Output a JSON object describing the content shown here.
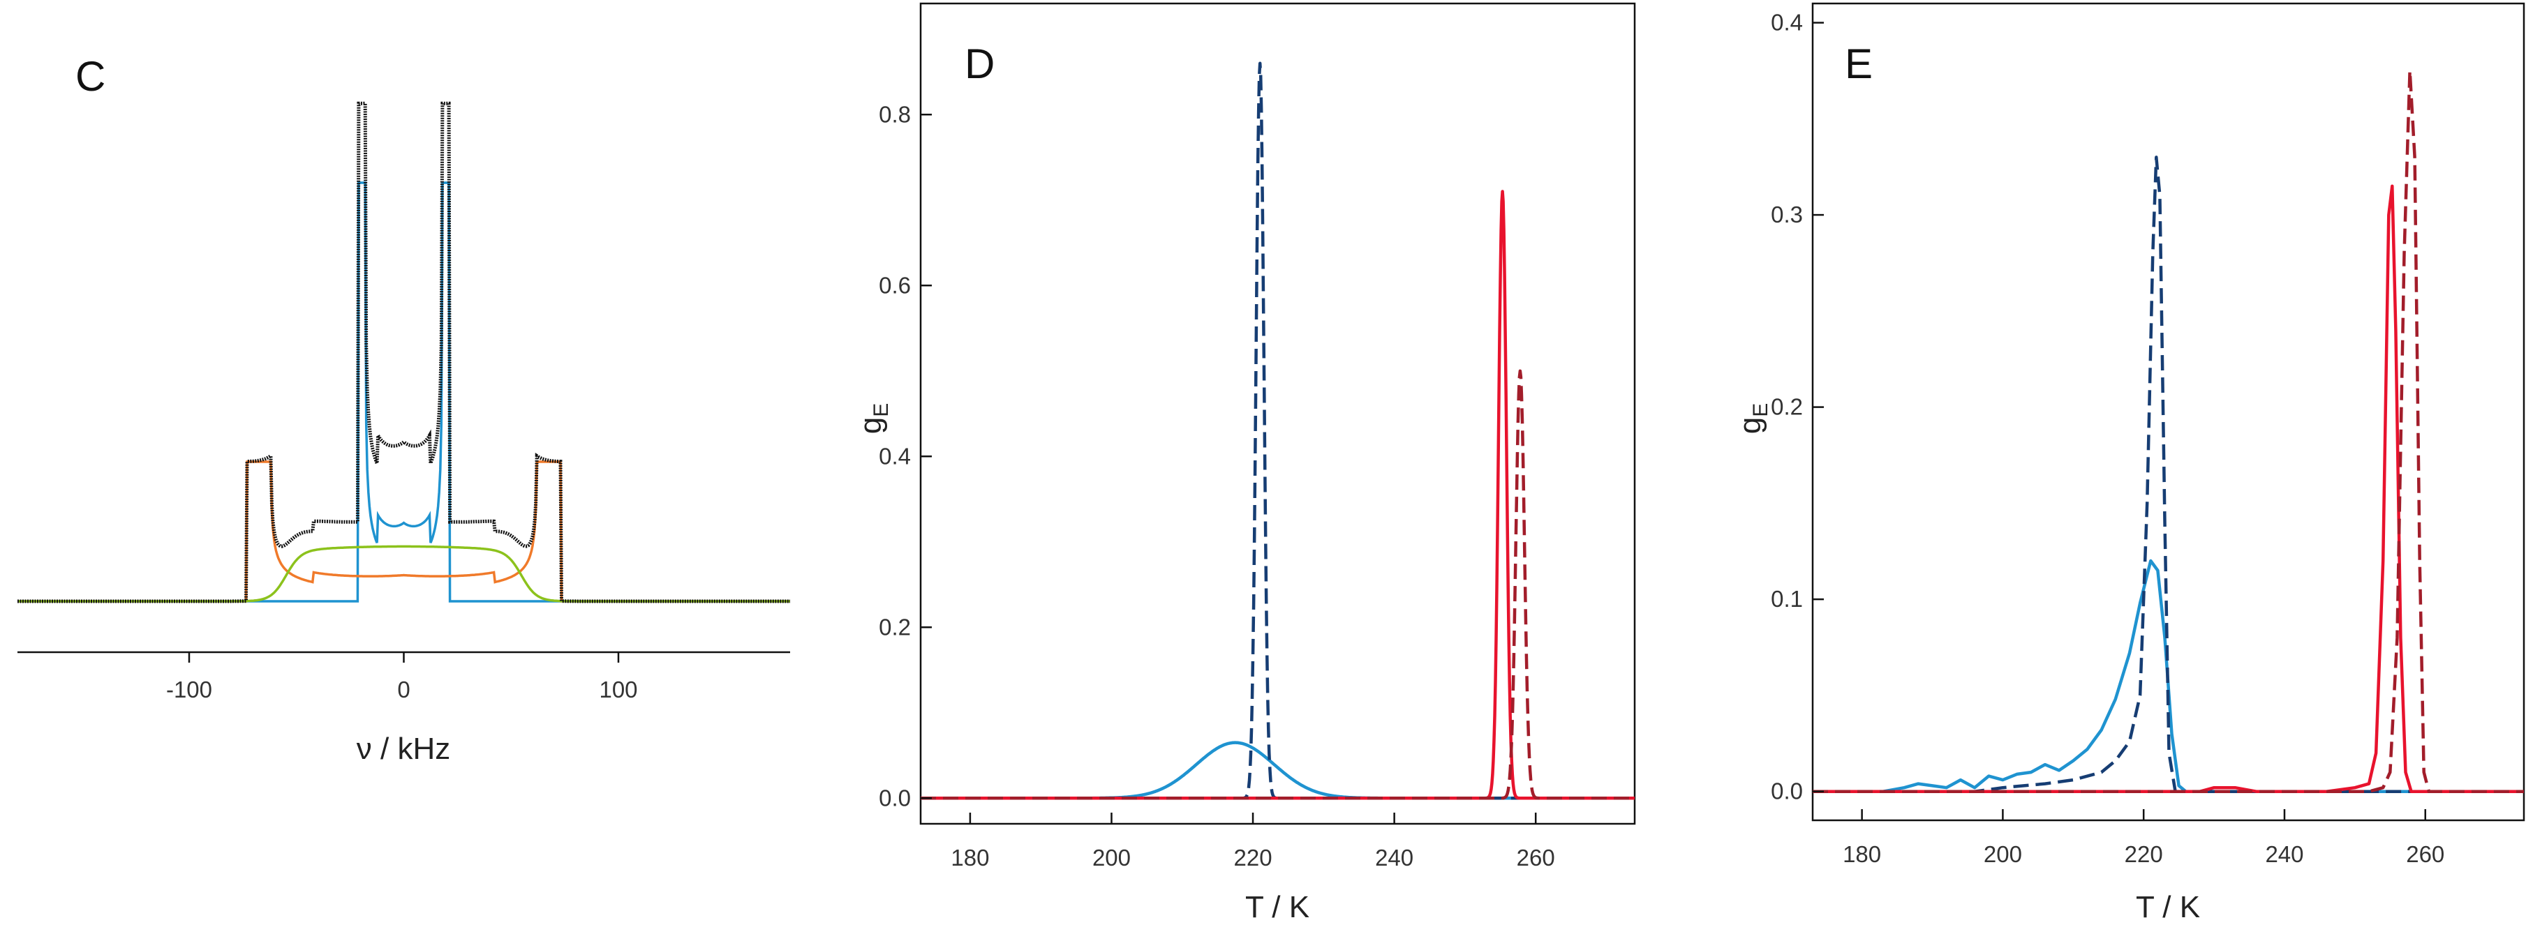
{
  "colors": {
    "black": "#111111",
    "blue": "#1f93d0",
    "orange": "#f07a2a",
    "green": "#8cc21c",
    "red": "#e8132d",
    "navy": "#163d73",
    "darkred": "#a21d2a"
  },
  "chart_data": [
    {
      "id": "C",
      "type": "line",
      "panel_label": "C",
      "xlabel": "ν / kHz",
      "ylabel": "",
      "xlim": [
        -180,
        180
      ],
      "ylim": [
        0,
        1.12
      ],
      "xticks": [
        -100,
        0,
        100
      ],
      "xtick_labels": [
        "-100",
        "0",
        "100"
      ],
      "series": [
        {
          "name": "experimental",
          "color": "#111111",
          "style": "dotted-solid",
          "model": "total",
          "peak_x": [
            -18,
            18
          ],
          "peak_y": 1.0
        },
        {
          "name": "blue component",
          "color": "#1f93d0",
          "style": "solid",
          "model": "pake",
          "splitting_khz": 18,
          "peak_y": 0.84
        },
        {
          "name": "orange component",
          "color": "#f07a2a",
          "style": "solid",
          "model": "pake",
          "splitting_khz": 62,
          "peak_y": 0.28
        },
        {
          "name": "green component",
          "color": "#8cc21c",
          "style": "solid",
          "model": "plateau",
          "range_khz": [
            -55,
            55
          ],
          "peak_y": 0.11
        }
      ]
    },
    {
      "id": "D",
      "type": "line",
      "panel_label": "D",
      "xlabel": "T / K",
      "ylabel": "gE",
      "ylabel_main": "g",
      "ylabel_sub": "E",
      "xlim": [
        173,
        274
      ],
      "ylim": [
        -0.03,
        0.93
      ],
      "xticks": [
        180,
        200,
        220,
        240,
        260
      ],
      "xtick_labels": [
        "180",
        "200",
        "220",
        "240",
        "260"
      ],
      "yticks": [
        0.0,
        0.2,
        0.4,
        0.6,
        0.8
      ],
      "ytick_labels": [
        "0.0",
        "0.2",
        "0.4",
        "0.6",
        "0.8"
      ],
      "series": [
        {
          "name": "blue solid",
          "color": "#1f93d0",
          "dashed": false,
          "center": 217.5,
          "sigma": 5.5,
          "height": 0.065
        },
        {
          "name": "navy dashed",
          "color": "#163d73",
          "dashed": true,
          "center": 221,
          "sigma": 0.55,
          "height": 0.86
        },
        {
          "name": "red solid",
          "color": "#e8132d",
          "dashed": false,
          "center": 255.3,
          "sigma": 0.55,
          "height": 0.71
        },
        {
          "name": "dark red dashed",
          "color": "#a21d2a",
          "dashed": true,
          "center": 257.8,
          "sigma": 0.6,
          "height": 0.5
        }
      ]
    },
    {
      "id": "E",
      "type": "line",
      "panel_label": "E",
      "xlabel": "T / K",
      "ylabel": "gE",
      "ylabel_main": "g",
      "ylabel_sub": "E",
      "xlim": [
        173,
        274
      ],
      "ylim": [
        -0.015,
        0.41
      ],
      "xticks": [
        180,
        200,
        220,
        240,
        260
      ],
      "xtick_labels": [
        "180",
        "200",
        "220",
        "240",
        "260"
      ],
      "yticks": [
        0.0,
        0.1,
        0.2,
        0.3,
        0.4
      ],
      "ytick_labels": [
        "0.0",
        "0.1",
        "0.2",
        "0.3",
        "0.4"
      ],
      "series": [
        {
          "name": "blue solid",
          "color": "#1f93d0",
          "dashed": false,
          "points": [
            [
              173,
              0
            ],
            [
              183,
              0
            ],
            [
              186,
              0.002
            ],
            [
              188,
              0.004
            ],
            [
              190,
              0.003
            ],
            [
              192,
              0.002
            ],
            [
              194,
              0.006
            ],
            [
              196,
              0.002
            ],
            [
              198,
              0.008
            ],
            [
              200,
              0.006
            ],
            [
              202,
              0.009
            ],
            [
              204,
              0.01
            ],
            [
              206,
              0.014
            ],
            [
              208,
              0.011
            ],
            [
              210,
              0.016
            ],
            [
              212,
              0.022
            ],
            [
              214,
              0.032
            ],
            [
              216,
              0.048
            ],
            [
              218,
              0.072
            ],
            [
              219.5,
              0.098
            ],
            [
              221,
              0.12
            ],
            [
              222,
              0.115
            ],
            [
              223,
              0.08
            ],
            [
              224,
              0.03
            ],
            [
              225,
              0.003
            ],
            [
              226,
              0
            ],
            [
              274,
              0
            ]
          ]
        },
        {
          "name": "navy dashed",
          "color": "#163d73",
          "dashed": true,
          "points": [
            [
              173,
              0
            ],
            [
              196,
              0
            ],
            [
              200,
              0.002
            ],
            [
              206,
              0.004
            ],
            [
              210,
              0.006
            ],
            [
              214,
              0.01
            ],
            [
              216,
              0.016
            ],
            [
              218,
              0.026
            ],
            [
              219.5,
              0.05
            ],
            [
              220.5,
              0.15
            ],
            [
              221.3,
              0.28
            ],
            [
              221.8,
              0.33
            ],
            [
              222.3,
              0.31
            ],
            [
              223,
              0.14
            ],
            [
              223.6,
              0.02
            ],
            [
              224.5,
              0
            ],
            [
              274,
              0
            ]
          ]
        },
        {
          "name": "red solid",
          "color": "#e8132d",
          "dashed": false,
          "points": [
            [
              173,
              0
            ],
            [
              228,
              0
            ],
            [
              230,
              0.002
            ],
            [
              233,
              0.002
            ],
            [
              236,
              0
            ],
            [
              246,
              0
            ],
            [
              250,
              0.002
            ],
            [
              252,
              0.004
            ],
            [
              253,
              0.02
            ],
            [
              254,
              0.12
            ],
            [
              254.8,
              0.3
            ],
            [
              255.3,
              0.315
            ],
            [
              255.8,
              0.24
            ],
            [
              256.5,
              0.08
            ],
            [
              257.2,
              0.01
            ],
            [
              258,
              0
            ],
            [
              274,
              0
            ]
          ]
        },
        {
          "name": "dark red dashed",
          "color": "#a21d2a",
          "dashed": true,
          "points": [
            [
              173,
              0
            ],
            [
              252,
              0
            ],
            [
              254,
              0.002
            ],
            [
              255,
              0.01
            ],
            [
              256,
              0.08
            ],
            [
              257,
              0.28
            ],
            [
              257.8,
              0.375
            ],
            [
              258.5,
              0.33
            ],
            [
              259.2,
              0.12
            ],
            [
              259.8,
              0.01
            ],
            [
              260.5,
              0
            ],
            [
              274,
              0
            ]
          ]
        }
      ]
    }
  ]
}
